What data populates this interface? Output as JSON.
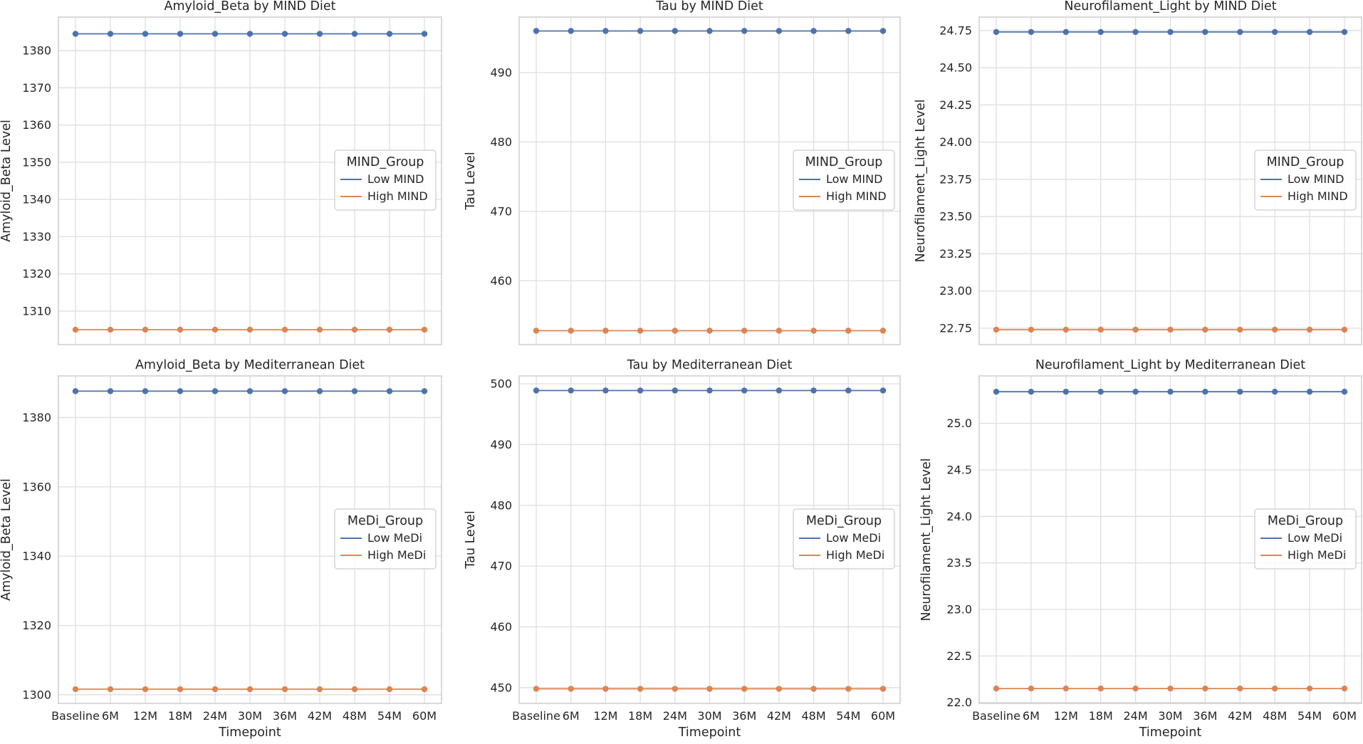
{
  "chart_data": [
    {
      "type": "line",
      "title": "Amyloid_Beta by MIND Diet",
      "xlabel": "",
      "ylabel": "Amyloid_Beta Level",
      "categories": [
        "Baseline",
        "6M",
        "12M",
        "18M",
        "24M",
        "30M",
        "36M",
        "42M",
        "48M",
        "54M",
        "60M"
      ],
      "ylim": [
        1301,
        1389
      ],
      "yticks": [
        1310,
        1320,
        1330,
        1340,
        1350,
        1360,
        1370,
        1380
      ],
      "ytick_labels": [
        "1310",
        "1320",
        "1330",
        "1340",
        "1350",
        "1360",
        "1370",
        "1380"
      ],
      "show_xticks": false,
      "legend_title": "MIND_Group",
      "legend_position": "center-right",
      "series": [
        {
          "name": "Low MIND",
          "color": "#4c72b0",
          "values": [
            1384.5,
            1384.5,
            1384.5,
            1384.5,
            1384.5,
            1384.5,
            1384.5,
            1384.5,
            1384.5,
            1384.5,
            1384.5
          ]
        },
        {
          "name": "High MIND",
          "color": "#dd8452",
          "values": [
            1305.0,
            1305.0,
            1305.0,
            1305.0,
            1305.0,
            1305.0,
            1305.0,
            1305.0,
            1305.0,
            1305.0,
            1305.0
          ]
        }
      ]
    },
    {
      "type": "line",
      "title": "Tau by MIND Diet",
      "xlabel": "",
      "ylabel": "Tau Level",
      "categories": [
        "Baseline",
        "6M",
        "12M",
        "18M",
        "24M",
        "30M",
        "36M",
        "42M",
        "48M",
        "54M",
        "60M"
      ],
      "ylim": [
        450.8,
        498.0
      ],
      "yticks": [
        460,
        470,
        480,
        490
      ],
      "ytick_labels": [
        "460",
        "470",
        "480",
        "490"
      ],
      "show_xticks": false,
      "legend_title": "MIND_Group",
      "legend_position": "center-right",
      "series": [
        {
          "name": "Low MIND",
          "color": "#4c72b0",
          "values": [
            496.0,
            496.0,
            496.0,
            496.0,
            496.0,
            496.0,
            496.0,
            496.0,
            496.0,
            496.0,
            496.0
          ]
        },
        {
          "name": "High MIND",
          "color": "#dd8452",
          "values": [
            452.8,
            452.8,
            452.8,
            452.8,
            452.8,
            452.8,
            452.8,
            452.8,
            452.8,
            452.8,
            452.8
          ]
        }
      ]
    },
    {
      "type": "line",
      "title": "Neurofilament_Light by MIND Diet",
      "xlabel": "",
      "ylabel": "Neurofilament_Light Level",
      "categories": [
        "Baseline",
        "6M",
        "12M",
        "18M",
        "24M",
        "30M",
        "36M",
        "42M",
        "48M",
        "54M",
        "60M"
      ],
      "ylim": [
        22.64,
        24.84
      ],
      "yticks": [
        22.75,
        23.0,
        23.25,
        23.5,
        23.75,
        24.0,
        24.25,
        24.5,
        24.75
      ],
      "ytick_labels": [
        "22.75",
        "23.00",
        "23.25",
        "23.50",
        "23.75",
        "24.00",
        "24.25",
        "24.50",
        "24.75"
      ],
      "show_xticks": false,
      "legend_title": "MIND_Group",
      "legend_position": "center-right",
      "series": [
        {
          "name": "Low MIND",
          "color": "#4c72b0",
          "values": [
            24.74,
            24.74,
            24.74,
            24.74,
            24.74,
            24.74,
            24.74,
            24.74,
            24.74,
            24.74,
            24.74
          ]
        },
        {
          "name": "High MIND",
          "color": "#dd8452",
          "values": [
            22.74,
            22.74,
            22.74,
            22.74,
            22.74,
            22.74,
            22.74,
            22.74,
            22.74,
            22.74,
            22.74
          ]
        }
      ]
    },
    {
      "type": "line",
      "title": "Amyloid_Beta by Mediterranean Diet",
      "xlabel": "Timepoint",
      "ylabel": "Amyloid_Beta Level",
      "categories": [
        "Baseline",
        "6M",
        "12M",
        "18M",
        "24M",
        "30M",
        "36M",
        "42M",
        "48M",
        "54M",
        "60M"
      ],
      "ylim": [
        1297.5,
        1392
      ],
      "yticks": [
        1300,
        1320,
        1340,
        1360,
        1380
      ],
      "ytick_labels": [
        "1300",
        "1320",
        "1340",
        "1360",
        "1380"
      ],
      "show_xticks": true,
      "legend_title": "MeDi_Group",
      "legend_position": "center-right",
      "series": [
        {
          "name": "Low MeDi",
          "color": "#4c72b0",
          "values": [
            1387.6,
            1387.6,
            1387.6,
            1387.6,
            1387.6,
            1387.6,
            1387.6,
            1387.6,
            1387.6,
            1387.6,
            1387.6
          ]
        },
        {
          "name": "High MeDi",
          "color": "#dd8452",
          "values": [
            1301.6,
            1301.6,
            1301.6,
            1301.6,
            1301.6,
            1301.6,
            1301.6,
            1301.6,
            1301.6,
            1301.6,
            1301.6
          ]
        }
      ]
    },
    {
      "type": "line",
      "title": "Tau by Mediterranean Diet",
      "xlabel": "Timepoint",
      "ylabel": "Tau Level",
      "categories": [
        "Baseline",
        "6M",
        "12M",
        "18M",
        "24M",
        "30M",
        "36M",
        "42M",
        "48M",
        "54M",
        "60M"
      ],
      "ylim": [
        447.4,
        501.3
      ],
      "yticks": [
        450,
        460,
        470,
        480,
        490,
        500
      ],
      "ytick_labels": [
        "450",
        "460",
        "470",
        "480",
        "490",
        "500"
      ],
      "show_xticks": true,
      "legend_title": "MeDi_Group",
      "legend_position": "center-right",
      "series": [
        {
          "name": "Low MeDi",
          "color": "#4c72b0",
          "values": [
            498.9,
            498.9,
            498.9,
            498.9,
            498.9,
            498.9,
            498.9,
            498.9,
            498.9,
            498.9,
            498.9
          ]
        },
        {
          "name": "High MeDi",
          "color": "#dd8452",
          "values": [
            449.8,
            449.8,
            449.8,
            449.8,
            449.8,
            449.8,
            449.8,
            449.8,
            449.8,
            449.8,
            449.8
          ]
        }
      ]
    },
    {
      "type": "line",
      "title": "Neurofilament_Light by Mediterranean Diet",
      "xlabel": "Timepoint",
      "ylabel": "Neurofilament_Light Level",
      "categories": [
        "Baseline",
        "6M",
        "12M",
        "18M",
        "24M",
        "30M",
        "36M",
        "42M",
        "48M",
        "54M",
        "60M"
      ],
      "ylim": [
        21.99,
        25.51
      ],
      "yticks": [
        22.0,
        22.5,
        23.0,
        23.5,
        24.0,
        24.5,
        25.0
      ],
      "ytick_labels": [
        "22.0",
        "22.5",
        "23.0",
        "23.5",
        "24.0",
        "24.5",
        "25.0"
      ],
      "show_xticks": true,
      "legend_title": "MeDi_Group",
      "legend_position": "center-right",
      "series": [
        {
          "name": "Low MeDi",
          "color": "#4c72b0",
          "values": [
            25.34,
            25.34,
            25.34,
            25.34,
            25.34,
            25.34,
            25.34,
            25.34,
            25.34,
            25.34,
            25.34
          ]
        },
        {
          "name": "High MeDi",
          "color": "#dd8452",
          "values": [
            22.15,
            22.15,
            22.15,
            22.15,
            22.15,
            22.15,
            22.15,
            22.15,
            22.15,
            22.15,
            22.15
          ]
        }
      ]
    }
  ]
}
